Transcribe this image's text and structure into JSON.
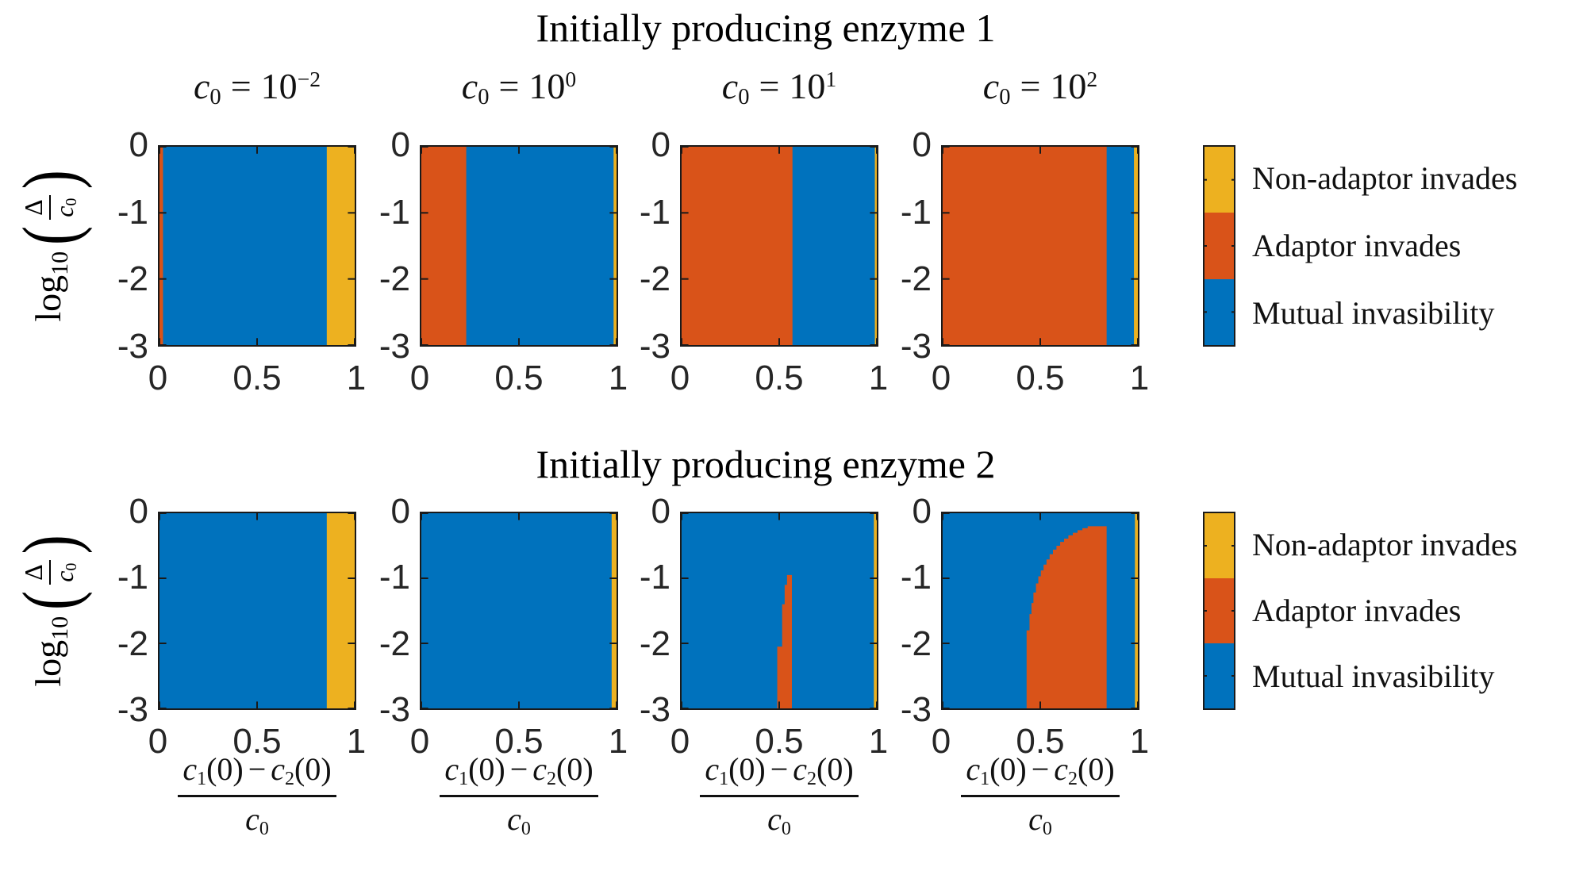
{
  "colors": {
    "mutual": "#0072BD",
    "adaptor": "#D95319",
    "non_adaptor": "#EDB120",
    "axis": "#1A1A1A"
  },
  "legend": {
    "items": [
      {
        "key": "non_adaptor",
        "label": "Non-adaptor invades"
      },
      {
        "key": "adaptor",
        "label": "Adaptor invades"
      },
      {
        "key": "mutual",
        "label": "Mutual invasibility"
      }
    ]
  },
  "labels": {
    "y": {
      "fn": "log",
      "fn_sub": "10",
      "open": "(",
      "num": "Δ",
      "den_sym": "c",
      "den_sub": "0",
      "close": ")",
      "plain": "log10(Δ/c0)"
    },
    "x": {
      "n1_sym": "c",
      "n1_sub": "1",
      "n1_arg": "(0)",
      "minus": "−",
      "n2_sym": "c",
      "n2_sub": "2",
      "n2_arg": "(0)",
      "den_sym": "c",
      "den_sub": "0",
      "plain": "(c1(0)−c2(0))/c0"
    }
  },
  "chart_data": [
    {
      "type": "heatmap",
      "row_title": "Initially producing enzyme 1",
      "x_range": [
        0,
        1
      ],
      "y_range": [
        -3,
        0
      ],
      "x_ticks": [
        {
          "v": 0,
          "label": "0"
        },
        {
          "v": 0.5,
          "label": "0.5"
        },
        {
          "v": 1,
          "label": "1"
        }
      ],
      "y_ticks": [
        {
          "v": 0,
          "label": "0"
        },
        {
          "v": -1,
          "label": "-1"
        },
        {
          "v": -2,
          "label": "-2"
        },
        {
          "v": -3,
          "label": "-3"
        }
      ],
      "panels": [
        {
          "title": {
            "sym": "c",
            "sub": "0",
            "eq": "=",
            "mant": "10",
            "exp": "−2"
          },
          "regions": [
            {
              "type": "band",
              "key": "mutual",
              "x": [
                0,
                1
              ]
            },
            {
              "type": "band",
              "key": "adaptor",
              "x": [
                0,
                0.018
              ]
            },
            {
              "type": "band",
              "key": "non_adaptor",
              "x": [
                0.857,
                1
              ]
            }
          ]
        },
        {
          "title": {
            "sym": "c",
            "sub": "0",
            "eq": "=",
            "mant": "10",
            "exp": "0"
          },
          "regions": [
            {
              "type": "band",
              "key": "mutual",
              "x": [
                0,
                1
              ]
            },
            {
              "type": "band",
              "key": "adaptor",
              "x": [
                0,
                0.23
              ]
            },
            {
              "type": "band",
              "key": "non_adaptor",
              "x": [
                0.985,
                1
              ]
            }
          ]
        },
        {
          "title": {
            "sym": "c",
            "sub": "0",
            "eq": "=",
            "mant": "10",
            "exp": "1"
          },
          "regions": [
            {
              "type": "band",
              "key": "mutual",
              "x": [
                0,
                1
              ]
            },
            {
              "type": "band",
              "key": "adaptor",
              "x": [
                0,
                0.568
              ]
            },
            {
              "type": "band",
              "key": "non_adaptor",
              "x": [
                0.99,
                1
              ]
            }
          ]
        },
        {
          "title": {
            "sym": "c",
            "sub": "0",
            "eq": "=",
            "mant": "10",
            "exp": "2"
          },
          "regions": [
            {
              "type": "band",
              "key": "mutual",
              "x": [
                0,
                1
              ]
            },
            {
              "type": "band",
              "key": "adaptor",
              "x": [
                0,
                0.84
              ]
            },
            {
              "type": "band",
              "key": "non_adaptor",
              "x": [
                0.98,
                1
              ]
            }
          ]
        }
      ]
    },
    {
      "type": "heatmap",
      "row_title": "Initially producing enzyme 2",
      "x_range": [
        0,
        1
      ],
      "y_range": [
        -3,
        0
      ],
      "x_ticks": [
        {
          "v": 0,
          "label": "0"
        },
        {
          "v": 0.5,
          "label": "0.5"
        },
        {
          "v": 1,
          "label": "1"
        }
      ],
      "y_ticks": [
        {
          "v": 0,
          "label": "0"
        },
        {
          "v": -1,
          "label": "-1"
        },
        {
          "v": -2,
          "label": "-2"
        },
        {
          "v": -3,
          "label": "-3"
        }
      ],
      "panels": [
        {
          "regions": [
            {
              "type": "band",
              "key": "mutual",
              "x": [
                0,
                1
              ]
            },
            {
              "type": "band",
              "key": "non_adaptor",
              "x": [
                0.857,
                1
              ]
            }
          ]
        },
        {
          "regions": [
            {
              "type": "band",
              "key": "mutual",
              "x": [
                0,
                1
              ]
            },
            {
              "type": "band",
              "key": "non_adaptor",
              "x": [
                0.975,
                1
              ]
            }
          ]
        },
        {
          "regions": [
            {
              "type": "band",
              "key": "mutual",
              "x": [
                0,
                1
              ]
            },
            {
              "type": "polygon",
              "key": "adaptor",
              "points": [
                [
                  0.49,
                  -3
                ],
                [
                  0.49,
                  -2.05
                ],
                [
                  0.515,
                  -2.05
                ],
                [
                  0.515,
                  -1.4
                ],
                [
                  0.528,
                  -1.4
                ],
                [
                  0.528,
                  -1.1
                ],
                [
                  0.54,
                  -1.1
                ],
                [
                  0.54,
                  -0.95
                ],
                [
                  0.565,
                  -0.95
                ],
                [
                  0.565,
                  -3
                ]
              ]
            },
            {
              "type": "band",
              "key": "non_adaptor",
              "x": [
                0.985,
                1
              ]
            }
          ]
        },
        {
          "regions": [
            {
              "type": "band",
              "key": "mutual",
              "x": [
                0,
                1
              ]
            },
            {
              "type": "polygon",
              "key": "adaptor",
              "points": [
                [
                  0.43,
                  -3
                ],
                [
                  0.43,
                  -1.8
                ],
                [
                  0.445,
                  -1.8
                ],
                [
                  0.445,
                  -1.55
                ],
                [
                  0.455,
                  -1.55
                ],
                [
                  0.455,
                  -1.38
                ],
                [
                  0.465,
                  -1.38
                ],
                [
                  0.465,
                  -1.22
                ],
                [
                  0.478,
                  -1.22
                ],
                [
                  0.478,
                  -1.08
                ],
                [
                  0.49,
                  -1.08
                ],
                [
                  0.49,
                  -0.97
                ],
                [
                  0.503,
                  -0.97
                ],
                [
                  0.503,
                  -0.88
                ],
                [
                  0.517,
                  -0.88
                ],
                [
                  0.517,
                  -0.79
                ],
                [
                  0.532,
                  -0.79
                ],
                [
                  0.532,
                  -0.71
                ],
                [
                  0.548,
                  -0.71
                ],
                [
                  0.548,
                  -0.63
                ],
                [
                  0.565,
                  -0.63
                ],
                [
                  0.565,
                  -0.56
                ],
                [
                  0.583,
                  -0.56
                ],
                [
                  0.583,
                  -0.5
                ],
                [
                  0.602,
                  -0.5
                ],
                [
                  0.602,
                  -0.44
                ],
                [
                  0.622,
                  -0.44
                ],
                [
                  0.622,
                  -0.39
                ],
                [
                  0.644,
                  -0.39
                ],
                [
                  0.644,
                  -0.34
                ],
                [
                  0.667,
                  -0.34
                ],
                [
                  0.667,
                  -0.3
                ],
                [
                  0.691,
                  -0.3
                ],
                [
                  0.691,
                  -0.26
                ],
                [
                  0.716,
                  -0.26
                ],
                [
                  0.716,
                  -0.23
                ],
                [
                  0.743,
                  -0.23
                ],
                [
                  0.743,
                  -0.2
                ],
                [
                  0.84,
                  -0.2
                ],
                [
                  0.84,
                  -3
                ]
              ]
            },
            {
              "type": "band",
              "key": "non_adaptor",
              "x": [
                0.985,
                1
              ]
            }
          ]
        }
      ]
    }
  ]
}
